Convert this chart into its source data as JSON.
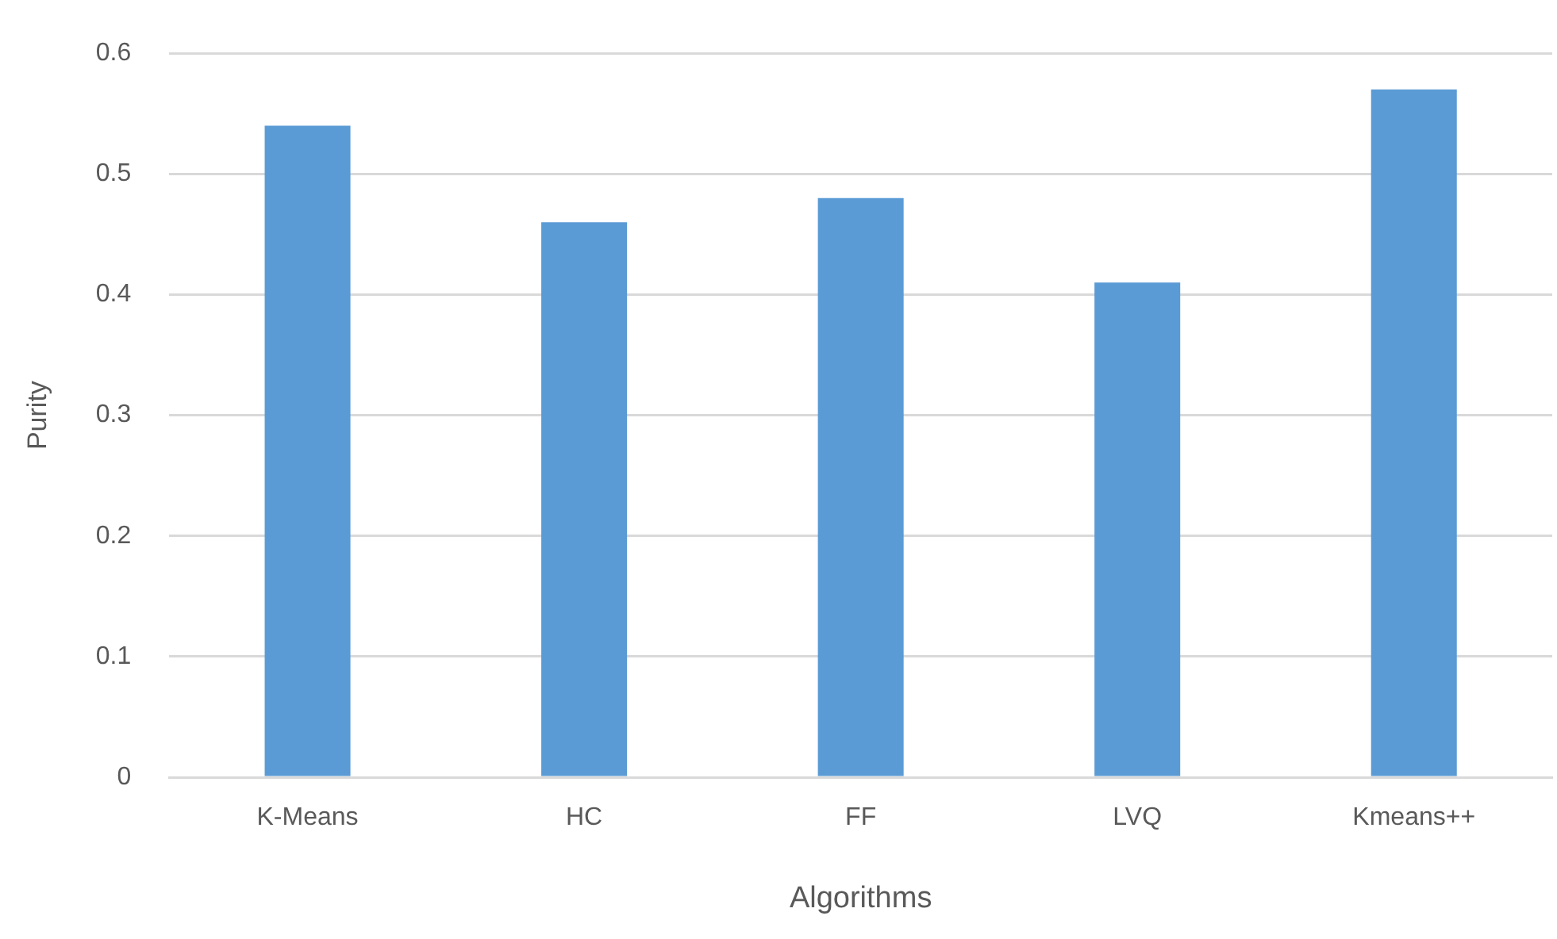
{
  "chart_data": {
    "type": "bar",
    "xlabel": "Algorithms",
    "ylabel": "Purity",
    "categories": [
      "K-Means",
      "HC",
      "FF",
      "LVQ",
      "Kmeans++"
    ],
    "values": [
      0.54,
      0.46,
      0.48,
      0.41,
      0.57
    ],
    "color": "#5b9bd5",
    "ylim": [
      0,
      0.6
    ],
    "yticks": [
      0,
      0.1,
      0.2,
      0.3,
      0.4,
      0.5,
      0.6
    ],
    "grid": "y",
    "legend": false
  }
}
